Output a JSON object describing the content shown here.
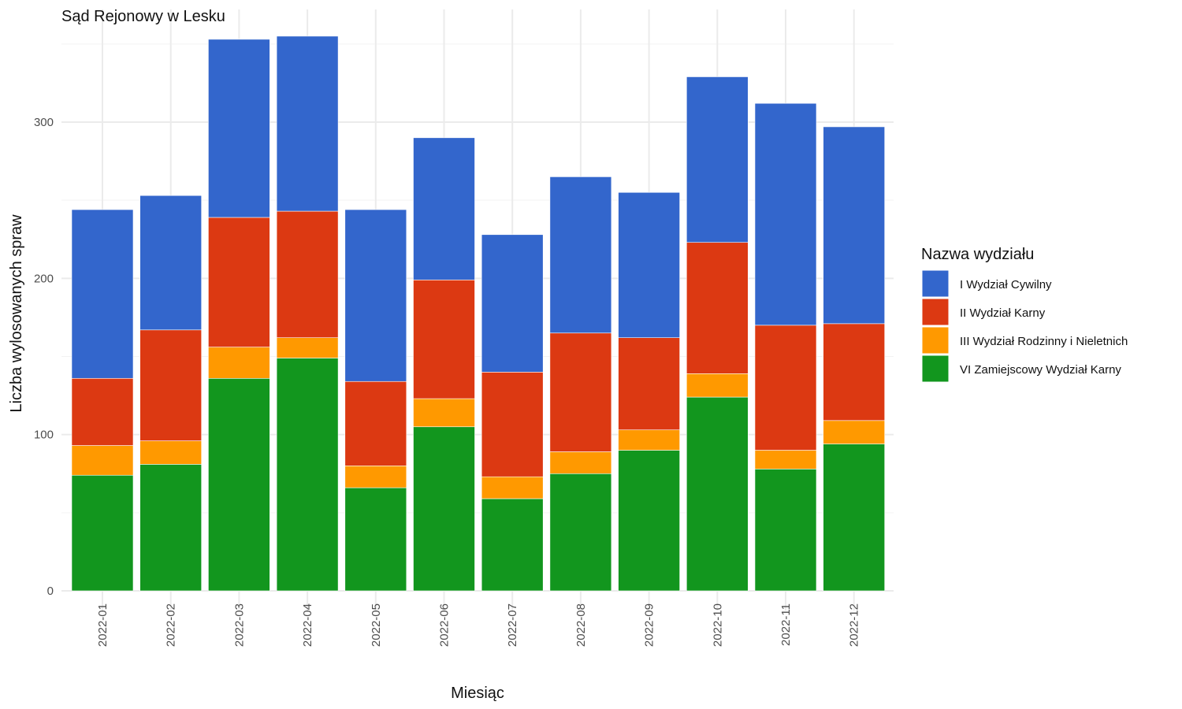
{
  "chart_data": {
    "type": "bar",
    "stacked": true,
    "title": "Sąd Rejonowy w Lesku",
    "xlabel": "Miesiąc",
    "ylabel": "Liczba wylosowanych spraw",
    "ylim": [
      0,
      355
    ],
    "yticks": [
      0,
      100,
      200,
      300
    ],
    "grid": true,
    "legend": {
      "title": "Nazwa wydziału",
      "position": "right"
    },
    "categories": [
      "2022-01",
      "2022-02",
      "2022-03",
      "2022-04",
      "2022-05",
      "2022-06",
      "2022-07",
      "2022-08",
      "2022-09",
      "2022-10",
      "2022-11",
      "2022-12"
    ],
    "series": [
      {
        "name": "VI Zamiejscowy Wydział Karny",
        "color": "#12961e",
        "values": [
          74,
          81,
          136,
          149,
          66,
          105,
          59,
          75,
          90,
          124,
          78,
          94
        ]
      },
      {
        "name": "III Wydział Rodzinny i Nieletnich",
        "color": "#ff9900",
        "values": [
          19,
          15,
          20,
          13,
          14,
          18,
          14,
          14,
          13,
          15,
          12,
          15
        ]
      },
      {
        "name": "II Wydział Karny",
        "color": "#dc3912",
        "values": [
          43,
          71,
          83,
          81,
          54,
          76,
          67,
          76,
          59,
          84,
          80,
          62
        ]
      },
      {
        "name": "I Wydział Cywilny",
        "color": "#3366cc",
        "values": [
          108,
          86,
          114,
          112,
          110,
          91,
          88,
          100,
          93,
          106,
          142,
          126
        ]
      }
    ],
    "legend_order": [
      "I Wydział Cywilny",
      "II Wydział Karny",
      "III Wydział Rodzinny i Nieletnich",
      "VI Zamiejscowy Wydział Karny"
    ]
  }
}
